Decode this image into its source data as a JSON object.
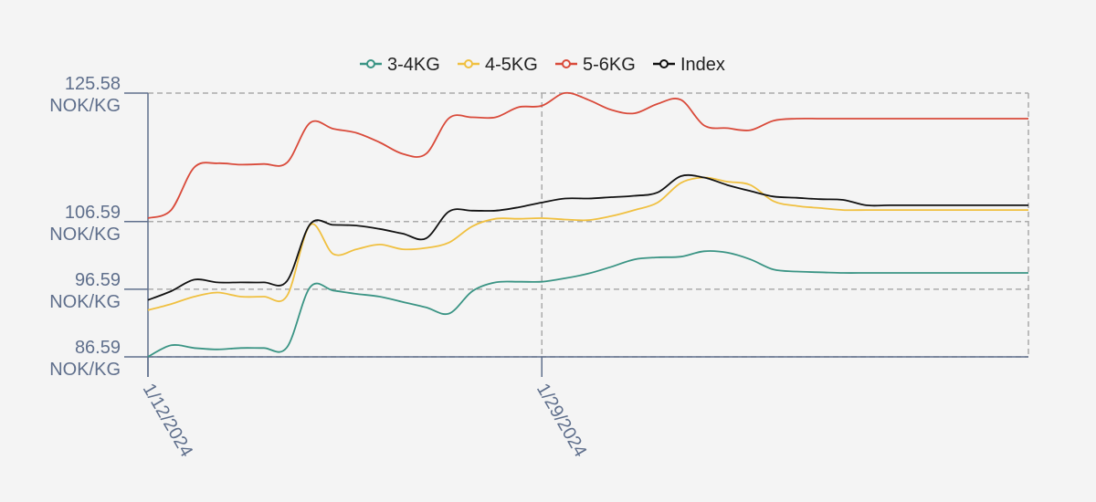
{
  "chart_data": {
    "type": "line",
    "x": [
      "1/12/2024",
      "1/13/2024",
      "1/14/2024",
      "1/15/2024",
      "1/16/2024",
      "1/17/2024",
      "1/18/2024",
      "1/19/2024",
      "1/20/2024",
      "1/21/2024",
      "1/22/2024",
      "1/23/2024",
      "1/24/2024",
      "1/25/2024",
      "1/26/2024",
      "1/27/2024",
      "1/28/2024",
      "1/29/2024",
      "1/30/2024",
      "1/31/2024",
      "2/1/2024",
      "2/2/2024",
      "2/3/2024",
      "2/4/2024",
      "2/5/2024",
      "2/6/2024",
      "2/7/2024",
      "2/8/2024",
      "2/9/2024",
      "2/10/2024",
      "2/11/2024",
      "2/12/2024",
      "2/13/2024",
      "2/14/2024",
      "2/15/2024",
      "2/16/2024",
      "2/17/2024",
      "2/18/2024",
      "2/19/2024"
    ],
    "x_ticks": [
      "1/12/2024",
      "1/29/2024"
    ],
    "y_ticks": [
      {
        "value": 86.59,
        "label": "86.59",
        "unit": "NOK/KG"
      },
      {
        "value": 96.59,
        "label": "96.59",
        "unit": "NOK/KG"
      },
      {
        "value": 106.59,
        "label": "106.59",
        "unit": "NOK/KG"
      },
      {
        "value": 125.58,
        "label": "125.58",
        "unit": "NOK/KG"
      }
    ],
    "ylim": [
      86.59,
      125.58
    ],
    "grid": true,
    "legend_position": "top-center",
    "series": [
      {
        "name": "3-4KG",
        "color": "#3a9484",
        "values": [
          86.6,
          88.3,
          87.9,
          87.7,
          87.9,
          87.9,
          88.0,
          96.9,
          96.4,
          95.9,
          95.5,
          94.7,
          93.9,
          93.0,
          96.3,
          97.6,
          97.7,
          97.7,
          98.2,
          98.9,
          99.9,
          101.0,
          101.3,
          101.4,
          102.2,
          102.0,
          101.0,
          99.5,
          99.2,
          99.1,
          99.0,
          99.0,
          99.0,
          99.0,
          99.0,
          99.0,
          99.0,
          99.0,
          99.0
        ]
      },
      {
        "name": "4-5KG",
        "color": "#f0c040",
        "values": [
          93.5,
          94.4,
          95.5,
          96.1,
          95.5,
          95.5,
          95.6,
          106.1,
          101.8,
          102.5,
          103.2,
          102.5,
          102.7,
          103.5,
          105.9,
          107.0,
          107.0,
          107.1,
          106.9,
          106.8,
          107.4,
          108.3,
          109.4,
          112.3,
          113.1,
          112.5,
          112.0,
          109.6,
          108.9,
          108.6,
          108.3,
          108.3,
          108.3,
          108.3,
          108.3,
          108.3,
          108.3,
          108.3,
          108.3
        ]
      },
      {
        "name": "5-6KG",
        "color": "#d94a3a",
        "values": [
          107.1,
          108.3,
          114.6,
          115.2,
          115.0,
          115.1,
          115.3,
          121.2,
          120.3,
          119.7,
          118.3,
          116.6,
          116.6,
          121.9,
          122.0,
          122.0,
          123.5,
          123.7,
          125.6,
          124.6,
          123.1,
          122.6,
          124.0,
          124.6,
          120.8,
          120.4,
          120.1,
          121.5,
          121.8,
          121.8,
          121.8,
          121.8,
          121.8,
          121.8,
          121.8,
          121.8,
          121.8,
          121.8,
          121.8
        ]
      },
      {
        "name": "Index",
        "color": "#111111",
        "values": [
          95.0,
          96.3,
          98.0,
          97.6,
          97.6,
          97.6,
          97.8,
          106.2,
          106.1,
          106.0,
          105.5,
          104.8,
          104.1,
          108.1,
          108.2,
          108.2,
          108.7,
          109.4,
          110.0,
          110.0,
          110.2,
          110.4,
          110.9,
          113.3,
          113.1,
          112.0,
          111.1,
          110.3,
          110.1,
          109.9,
          109.8,
          109.0,
          109.0,
          109.0,
          109.0,
          109.0,
          109.0,
          109.0,
          109.0
        ]
      }
    ]
  }
}
